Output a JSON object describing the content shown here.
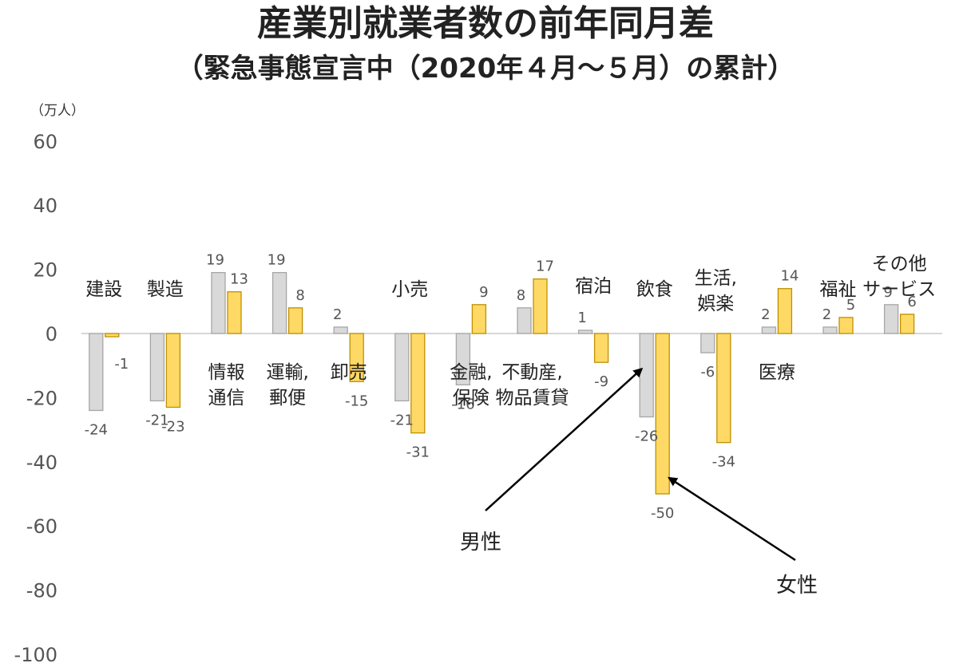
{
  "title": "産業別就業者数の前年同月差",
  "subtitle": "（緊急事態宣言中（2020年４月～５月）の累計）",
  "chart_data": {
    "type": "bar",
    "unit_label": "（万人）",
    "ylim": [
      -100,
      60
    ],
    "yticks": [
      60,
      40,
      20,
      0,
      -20,
      -40,
      -60,
      -80,
      -100
    ],
    "ytick_labels": [
      "60",
      "40",
      "20",
      "0",
      "-20",
      "-40",
      "-60",
      "-80",
      "-100"
    ],
    "grid": false,
    "categories": [
      [
        "建設"
      ],
      [
        "製造"
      ],
      [
        "情報",
        "通信"
      ],
      [
        "運輸,",
        "郵便"
      ],
      [
        "卸売"
      ],
      [
        "小売"
      ],
      [
        "金融,",
        "保険"
      ],
      [
        "不動産,",
        "物品賃貸"
      ],
      [
        "宿泊"
      ],
      [
        "飲食"
      ],
      [
        "生活,",
        "娯楽"
      ],
      [
        "医療"
      ],
      [
        "福祉"
      ],
      [
        "その他",
        "サービス"
      ]
    ],
    "series": [
      {
        "name": "男性",
        "color": "#d9d9d9",
        "stroke": "#a6a6a6",
        "values": [
          -24,
          -21,
          19,
          19,
          2,
          -21,
          -16,
          8,
          1,
          -26,
          -6,
          2,
          2,
          9
        ],
        "labels": [
          "-24",
          "-21",
          "19",
          "19",
          "2",
          "-21",
          "-16",
          "8",
          "1",
          "-26",
          "-6",
          "2",
          "2",
          "9"
        ]
      },
      {
        "name": "女性",
        "color": "#ffd966",
        "stroke": "#bf9000",
        "values": [
          -1,
          -23,
          13,
          8,
          -15,
          -31,
          9,
          17,
          -9,
          -50,
          -34,
          14,
          5,
          6
        ],
        "labels": [
          "-1",
          "-23",
          "13",
          "8",
          "-15",
          "-31",
          "9",
          "17",
          "-9",
          "-50",
          "-34",
          "14",
          "5",
          "6"
        ]
      }
    ],
    "annotations": [
      "男性",
      "女性"
    ]
  }
}
